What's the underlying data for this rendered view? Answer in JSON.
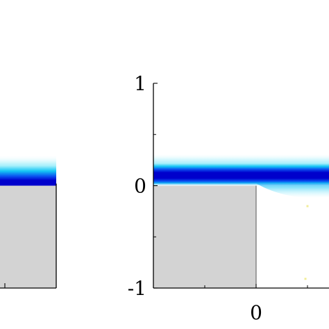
{
  "colors": {
    "background": "#ffffff",
    "obstacle_fill": "#d3d3d3",
    "flow_core": "#0000cc",
    "flow_mid": "#0a4ff0",
    "flow_outer": "#15c6f5",
    "flow_fringe": "#a8f0fb",
    "axis": "#000000",
    "speck": "#f2ee9a"
  },
  "chart_data": [
    {
      "panel": "left",
      "type": "heatmap",
      "title": "",
      "xlabel": "",
      "ylabel": "",
      "xlim": [
        -1,
        0
      ],
      "ylim": [
        -1,
        1
      ],
      "x_ticks": [],
      "y_ticks": [],
      "obstacle": {
        "x": [
          -1,
          0
        ],
        "y": [
          -1,
          0
        ]
      },
      "jet": {
        "x_start": -1,
        "x_end": 0,
        "core_y": 0.05,
        "core_half_width": 0.05,
        "outer_y_top": 0.26
      }
    },
    {
      "panel": "right",
      "type": "heatmap",
      "title": "",
      "xlabel": "",
      "ylabel": "",
      "xlim": [
        -1,
        0.7
      ],
      "ylim": [
        -1,
        1
      ],
      "x_ticks": [
        {
          "value": 0,
          "label": "0"
        }
      ],
      "x_minor_ticks": [
        -0.5,
        0.5
      ],
      "y_ticks": [
        {
          "value": 1,
          "label": "1"
        },
        {
          "value": 0,
          "label": "0"
        },
        {
          "value": -1,
          "label": "-1"
        }
      ],
      "y_minor_ticks": [
        0.5,
        -0.5
      ],
      "obstacle": {
        "x": [
          -1,
          0
        ],
        "y": [
          -1,
          0
        ]
      },
      "jet": {
        "x_start": -1,
        "x_end": 0.7,
        "core_y": 0.1,
        "core_half_width": 0.08,
        "outer_y_top": 0.26
      },
      "specks": [
        {
          "x": 0.5,
          "y": -0.2
        },
        {
          "x": 0.48,
          "y": -0.91
        }
      ]
    }
  ]
}
